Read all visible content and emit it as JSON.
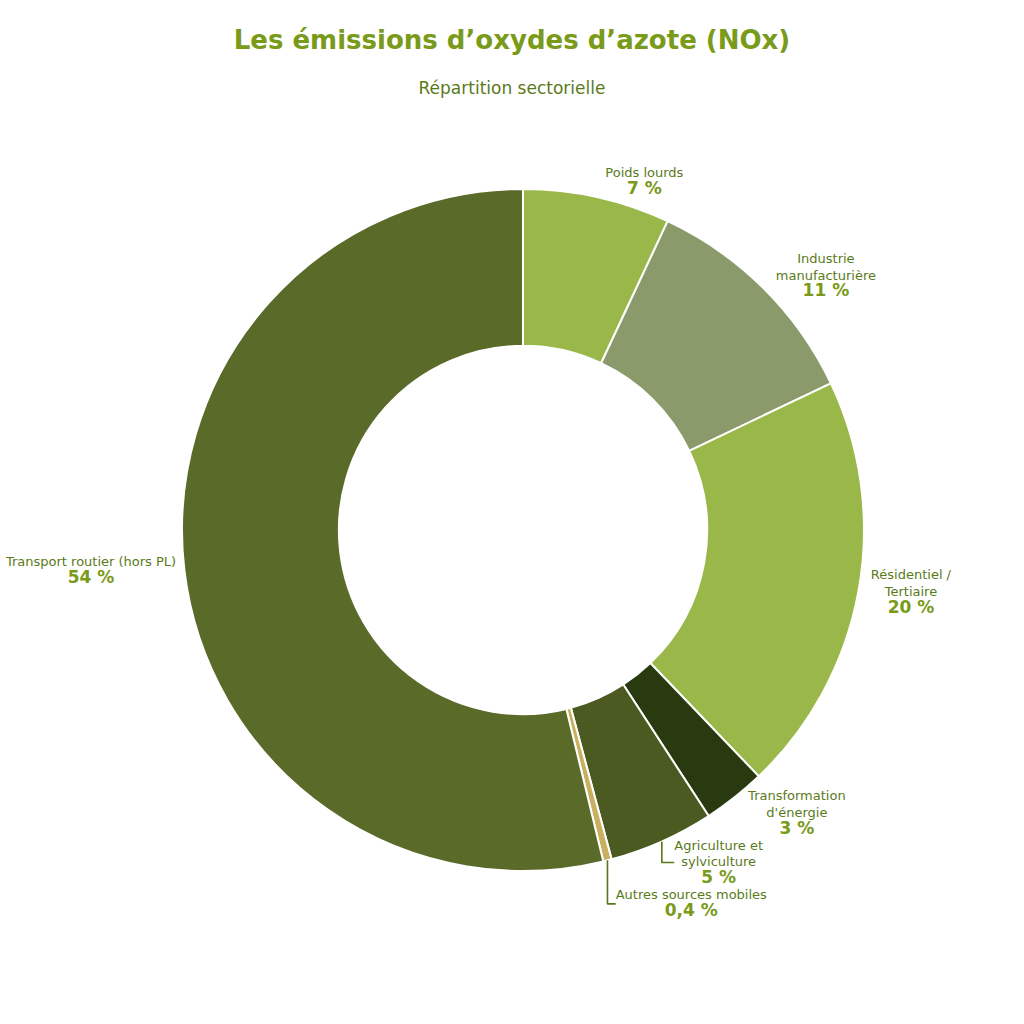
{
  "chart_data": {
    "type": "pie",
    "title": "Les émissions d’oxydes d’azote (NOx)",
    "subtitle": "Répartition sectorielle",
    "categories": [
      "Poids lourds",
      "Industrie\nmanufacturière",
      "Résidentiel /\nTertiaire",
      "Transformation\nd'énergie",
      "Agriculture et\nsylviculture",
      "Autres sources mobiles",
      "Transport routier (hors PL)"
    ],
    "values": [
      7,
      11,
      20,
      3,
      5,
      0.4,
      54
    ],
    "value_labels": [
      "7 %",
      "11 %",
      "20 %",
      "3 %",
      "5 %",
      "0,4 %",
      "54 %"
    ],
    "colors": [
      "#9ab84a",
      "#8a9a6a",
      "#9ab84a",
      "#2a3a10",
      "#4a5a20",
      "#c8b060",
      "#5a6a28"
    ],
    "data_labels": true
  }
}
